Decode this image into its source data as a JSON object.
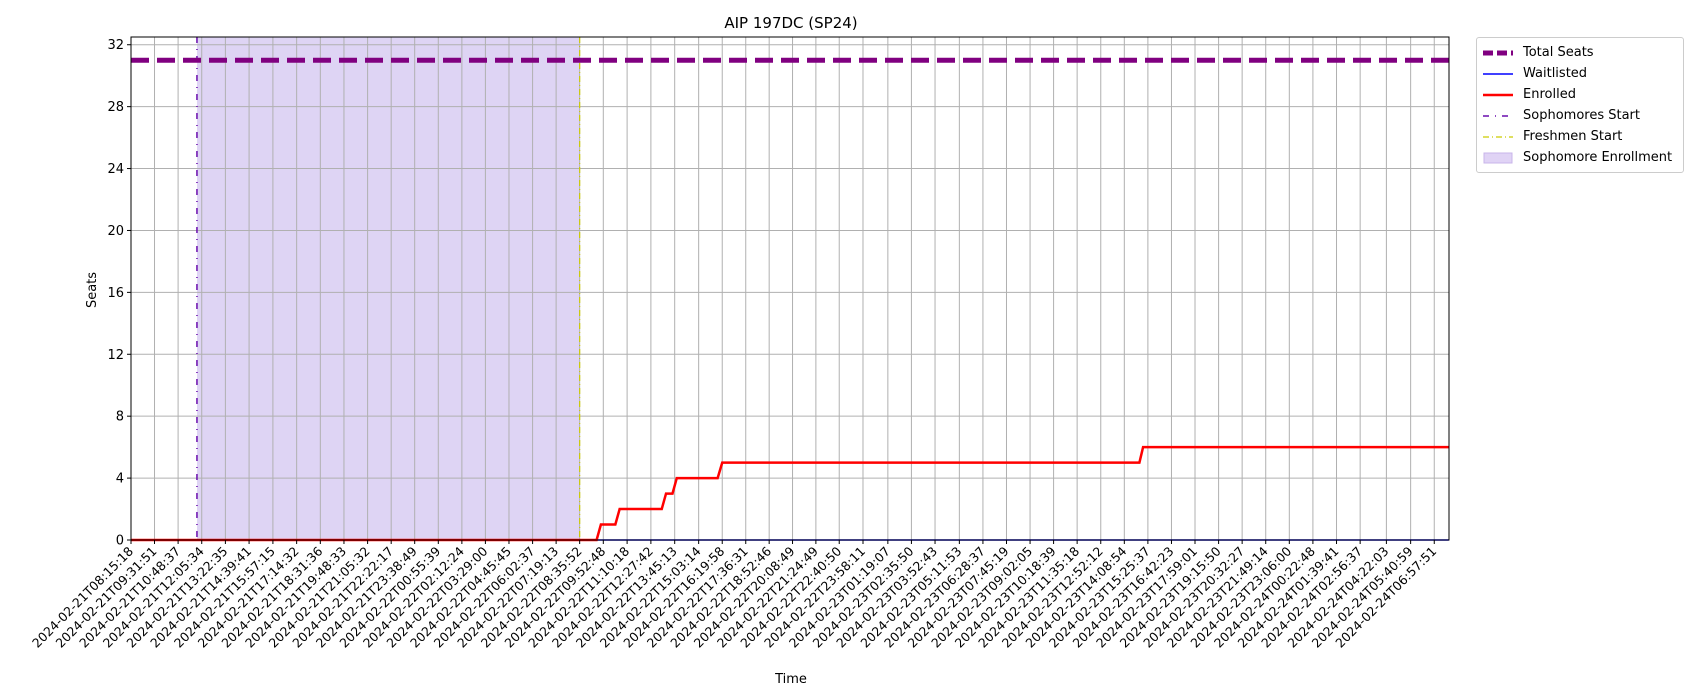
{
  "chart_data": {
    "type": "line",
    "title": "AIP 197DC (SP24)",
    "xlabel": "Time",
    "ylabel": "Seats",
    "ylim": [
      0,
      32.5
    ],
    "yticks": [
      0,
      4,
      8,
      12,
      16,
      20,
      24,
      28,
      32
    ],
    "grid": true,
    "legend_position": "outside-top-right",
    "x_tick_labels": [
      "2024-02-21T08:15:18",
      "2024-02-21T09:31:51",
      "2024-02-21T10:48:37",
      "2024-02-21T12:05:34",
      "2024-02-21T13:22:35",
      "2024-02-21T14:39:41",
      "2024-02-21T15:57:15",
      "2024-02-21T17:14:32",
      "2024-02-21T18:31:36",
      "2024-02-21T19:48:33",
      "2024-02-21T21:05:32",
      "2024-02-21T22:22:17",
      "2024-02-21T23:38:49",
      "2024-02-22T00:55:39",
      "2024-02-22T02:12:24",
      "2024-02-22T03:29:00",
      "2024-02-22T04:45:45",
      "2024-02-22T06:02:37",
      "2024-02-22T07:19:13",
      "2024-02-22T08:35:52",
      "2024-02-22T09:52:48",
      "2024-02-22T11:10:18",
      "2024-02-22T12:27:42",
      "2024-02-22T13:45:13",
      "2024-02-22T15:03:14",
      "2024-02-22T16:19:58",
      "2024-02-22T17:36:31",
      "2024-02-22T18:52:46",
      "2024-02-22T20:08:49",
      "2024-02-22T21:24:49",
      "2024-02-22T22:40:50",
      "2024-02-22T23:58:11",
      "2024-02-23T01:19:07",
      "2024-02-23T02:35:50",
      "2024-02-23T03:52:43",
      "2024-02-23T05:11:53",
      "2024-02-23T06:28:37",
      "2024-02-23T07:45:19",
      "2024-02-23T09:02:05",
      "2024-02-23T10:18:39",
      "2024-02-23T11:35:18",
      "2024-02-23T12:52:12",
      "2024-02-23T14:08:54",
      "2024-02-23T15:25:37",
      "2024-02-23T16:42:23",
      "2024-02-23T17:59:01",
      "2024-02-23T19:15:50",
      "2024-02-23T20:32:27",
      "2024-02-23T21:49:14",
      "2024-02-23T23:06:00",
      "2024-02-24T00:22:48",
      "2024-02-24T01:39:41",
      "2024-02-24T02:56:37",
      "2024-02-24T04:22:03",
      "2024-02-24T05:40:59",
      "2024-02-24T06:57:51"
    ],
    "series": [
      {
        "name": "Total Seats",
        "color": "#800080",
        "style": "dashed-thick",
        "points": [
          [
            "2024-02-21T08:15:18",
            31
          ],
          [
            "2024-02-24T07:45:00",
            31
          ]
        ]
      },
      {
        "name": "Waitlisted",
        "color": "#0000ff",
        "style": "solid",
        "points": [
          [
            "2024-02-21T08:15:18",
            0
          ],
          [
            "2024-02-24T07:45:00",
            0
          ]
        ]
      },
      {
        "name": "Enrolled",
        "color": "#ff0000",
        "style": "solid-thick",
        "points": [
          [
            "2024-02-21T08:15:18",
            0
          ],
          [
            "2024-02-22T09:31:00",
            0
          ],
          [
            "2024-02-22T09:45:00",
            1
          ],
          [
            "2024-02-22T10:32:00",
            1
          ],
          [
            "2024-02-22T10:46:00",
            2
          ],
          [
            "2024-02-22T13:03:00",
            2
          ],
          [
            "2024-02-22T13:17:00",
            3
          ],
          [
            "2024-02-22T13:38:00",
            3
          ],
          [
            "2024-02-22T13:52:00",
            4
          ],
          [
            "2024-02-22T16:05:00",
            4
          ],
          [
            "2024-02-22T16:19:58",
            5
          ],
          [
            "2024-02-23T14:58:00",
            5
          ],
          [
            "2024-02-23T15:10:00",
            6
          ],
          [
            "2024-02-24T07:45:00",
            6
          ]
        ]
      }
    ],
    "vertical_lines": [
      {
        "name": "Sophomores Start",
        "x": "2024-02-21T11:50:00",
        "color": "#6a0dad",
        "style": "dashdot"
      },
      {
        "name": "Freshmen Start",
        "x": "2024-02-22T08:35:52",
        "color": "#cccc00",
        "style": "dashdot"
      }
    ],
    "shaded_regions": [
      {
        "name": "Sophomore Enrollment",
        "x_start": "2024-02-21T11:50:00",
        "x_end": "2024-02-22T08:35:52",
        "color": "#9370db",
        "alpha": 0.3
      }
    ],
    "legend": [
      {
        "label": "Total Seats",
        "kind": "line",
        "color": "#800080",
        "dash": "10,4",
        "width": 5
      },
      {
        "label": "Waitlisted",
        "kind": "line",
        "color": "#0000ff",
        "dash": "",
        "width": 1.5
      },
      {
        "label": "Enrolled",
        "kind": "line",
        "color": "#ff0000",
        "dash": "",
        "width": 2.5
      },
      {
        "label": "Sophomores Start",
        "kind": "line",
        "color": "#6a0dad",
        "dash": "6,6,1,6",
        "width": 1.5
      },
      {
        "label": "Freshmen Start",
        "kind": "line",
        "color": "#cccc00",
        "dash": "6,3,1,3",
        "width": 1.2
      },
      {
        "label": "Sophomore Enrollment",
        "kind": "patch",
        "color": "#e0d3f5",
        "dash": "",
        "width": 1
      }
    ]
  }
}
